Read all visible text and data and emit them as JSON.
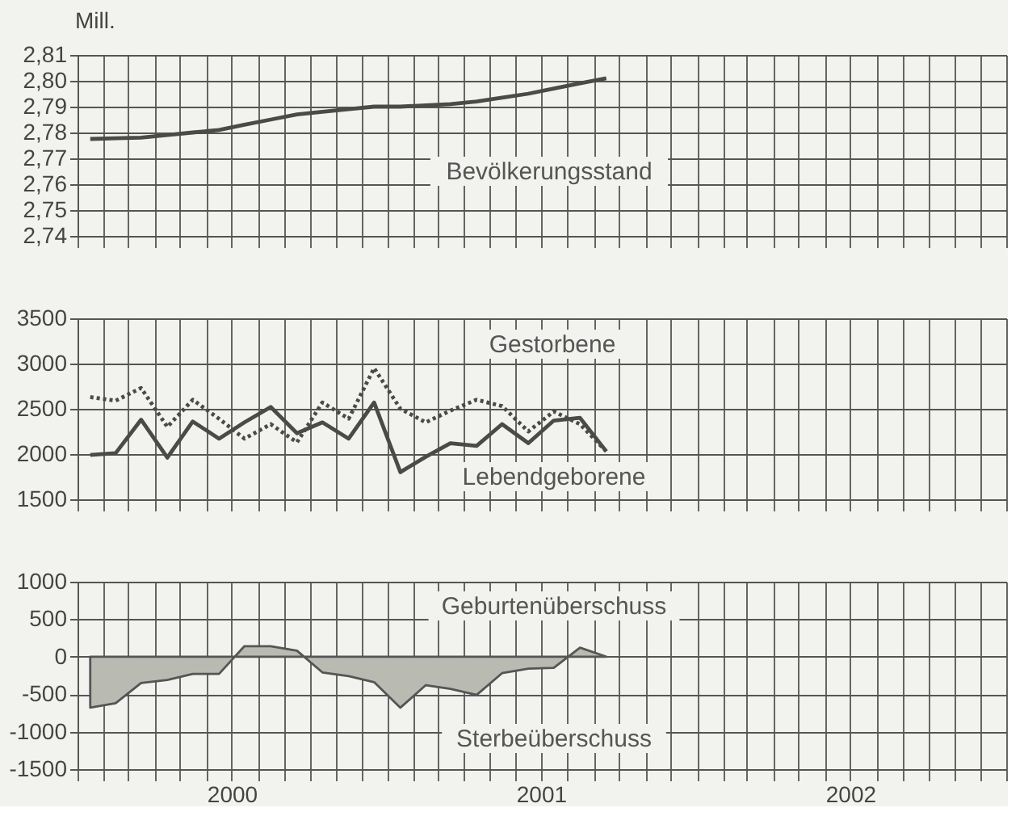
{
  "chart_data": [
    {
      "type": "line",
      "ylabel": "Mill.",
      "x": [
        "2000-01-16",
        "2000-02-15",
        "2000-03-16",
        "2000-04-16",
        "2000-05-16",
        "2000-06-16",
        "2000-07-16",
        "2000-08-16",
        "2000-09-16",
        "2000-10-16",
        "2000-11-16",
        "2000-12-16",
        "2001-01-16",
        "2001-02-15",
        "2001-03-16",
        "2001-04-16",
        "2001-05-16",
        "2001-06-16",
        "2001-07-16",
        "2001-08-16",
        "2001-09-16"
      ],
      "xlim": [
        "2000-01-01",
        "2003-01-01"
      ],
      "ylim": [
        2.74,
        2.81
      ],
      "yticks": [
        {
          "value": 2.74,
          "label": "2,74"
        },
        {
          "value": 2.75,
          "label": "2,75"
        },
        {
          "value": 2.76,
          "label": "2,76"
        },
        {
          "value": 2.77,
          "label": "2,77"
        },
        {
          "value": 2.78,
          "label": "2,78"
        },
        {
          "value": 2.79,
          "label": "2,79"
        },
        {
          "value": 2.8,
          "label": "2,80"
        },
        {
          "value": 2.81,
          "label": "2,81"
        }
      ],
      "tick_labels": "y",
      "grid": true,
      "series": [
        {
          "name": "Bevölkerungsstand",
          "color": "#4a4a48",
          "values": [
            2.7775,
            2.7778,
            2.778,
            2.779,
            2.78,
            2.781,
            2.783,
            2.785,
            2.787,
            2.788,
            2.789,
            2.79,
            2.79,
            2.7905,
            2.791,
            2.792,
            2.7935,
            2.795,
            2.797,
            2.799,
            2.801
          ]
        }
      ]
    },
    {
      "type": "line",
      "x": [
        "2000-01-16",
        "2000-02-15",
        "2000-03-16",
        "2000-04-16",
        "2000-05-16",
        "2000-06-16",
        "2000-07-16",
        "2000-08-16",
        "2000-09-16",
        "2000-10-16",
        "2000-11-16",
        "2000-12-16",
        "2001-01-16",
        "2001-02-15",
        "2001-03-16",
        "2001-04-16",
        "2001-05-16",
        "2001-06-16",
        "2001-07-16",
        "2001-08-16",
        "2001-09-16"
      ],
      "xlim": [
        "2000-01-01",
        "2003-01-01"
      ],
      "ylim": [
        1500,
        3500
      ],
      "yticks": [
        1500,
        2000,
        2500,
        3000,
        3500
      ],
      "tick_labels": "y",
      "grid": true,
      "series": [
        {
          "name": "Gestorbene",
          "color": "#4a4a48",
          "line_style": "dotted",
          "values": [
            2630,
            2590,
            2730,
            2300,
            2600,
            2390,
            2170,
            2330,
            2130,
            2570,
            2390,
            2950,
            2500,
            2350,
            2480,
            2600,
            2530,
            2250,
            2470,
            2330,
            2030
          ]
        },
        {
          "name": "Lebendgeborene",
          "color": "#4a4a48",
          "line_style": "solid",
          "values": [
            1990,
            2010,
            2380,
            1960,
            2360,
            2170,
            2350,
            2520,
            2230,
            2350,
            2170,
            2570,
            1800,
            1970,
            2120,
            2090,
            2330,
            2120,
            2370,
            2400,
            2030
          ]
        }
      ]
    },
    {
      "type": "area",
      "x": [
        "2000-01-16",
        "2000-02-15",
        "2000-03-16",
        "2000-04-16",
        "2000-05-16",
        "2000-06-16",
        "2000-07-16",
        "2000-08-16",
        "2000-09-16",
        "2000-10-16",
        "2000-11-16",
        "2000-12-16",
        "2001-01-16",
        "2001-02-15",
        "2001-03-16",
        "2001-04-16",
        "2001-05-16",
        "2001-06-16",
        "2001-07-16",
        "2001-08-16",
        "2001-09-16"
      ],
      "xlim": [
        "2000-01-01",
        "2003-01-01"
      ],
      "ylim": [
        -1500,
        1000
      ],
      "yticks": [
        -1500,
        -1000,
        -500,
        0,
        500,
        1000
      ],
      "xticks": [
        {
          "value": "2000-07-01",
          "label": "2000"
        },
        {
          "value": "2001-07-01",
          "label": "2001"
        },
        {
          "value": "2002-07-01",
          "label": "2002"
        }
      ],
      "grid": true,
      "annotations": [
        "Geburtenüberschuss",
        "Sterbeüberschuss"
      ],
      "series": [
        {
          "color": "#b9bbb2",
          "values": [
            -680,
            -620,
            -350,
            -310,
            -230,
            -230,
            140,
            140,
            80,
            -210,
            -260,
            -340,
            -680,
            -380,
            -430,
            -510,
            -220,
            -160,
            -150,
            120,
            0
          ]
        }
      ]
    }
  ]
}
